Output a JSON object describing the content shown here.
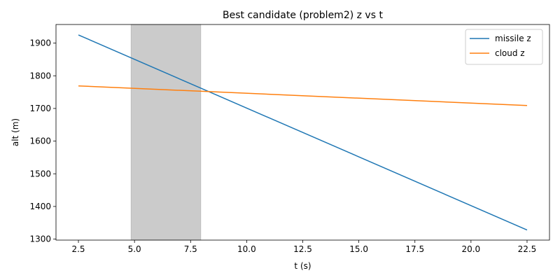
{
  "chart_data": {
    "type": "line",
    "title": "Best candidate (problem2) z vs t",
    "xlabel": "t (s)",
    "ylabel": "alt (m)",
    "xlim": [
      1.5,
      23.5
    ],
    "ylim": [
      1297,
      1957
    ],
    "xticks": [
      2.5,
      5.0,
      7.5,
      10.0,
      12.5,
      15.0,
      17.5,
      20.0,
      22.5
    ],
    "xtick_labels": [
      "2.5",
      "5.0",
      "7.5",
      "10.0",
      "12.5",
      "15.0",
      "17.5",
      "20.0",
      "22.5"
    ],
    "yticks": [
      1300,
      1400,
      1500,
      1600,
      1700,
      1800,
      1900
    ],
    "ytick_labels": [
      "1300",
      "1400",
      "1500",
      "1600",
      "1700",
      "1800",
      "1900"
    ],
    "shaded_region": {
      "x_start": 4.85,
      "x_end": 7.95,
      "color": "#cbcbcb"
    },
    "series": [
      {
        "name": "missile z",
        "color": "#1f77b4",
        "x": [
          2.5,
          22.5
        ],
        "y": [
          1925,
          1328
        ]
      },
      {
        "name": "cloud z",
        "color": "#ff7f0e",
        "x": [
          2.5,
          22.5
        ],
        "y": [
          1769,
          1709
        ]
      }
    ],
    "legend_position": "top-right",
    "grid": false
  }
}
